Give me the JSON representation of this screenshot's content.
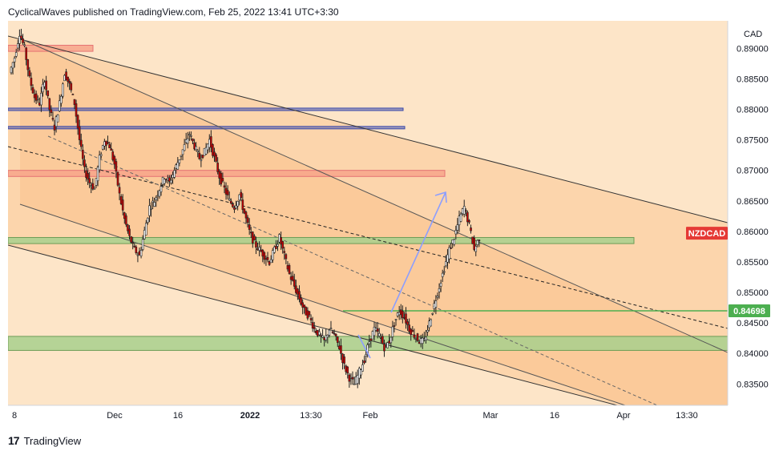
{
  "header": {
    "text": "CyclicalWaves published on TradingView.com, Feb 25, 2022 13:41 UTC+3:30"
  },
  "footer": {
    "logo": "17",
    "brand": "TradingView"
  },
  "chart_data": {
    "type": "candlestick",
    "symbol": "NZDCAD",
    "currency": "CAD",
    "y_axis_labels": [
      "0.89000",
      "0.88500",
      "0.88000",
      "0.87500",
      "0.87000",
      "0.86500",
      "0.86000",
      "0.85500",
      "0.85000",
      "0.84500",
      "0.84000",
      "0.83500"
    ],
    "ylim": [
      0.8315,
      0.8945
    ],
    "x_axis_labels": [
      "8",
      "Dec",
      "16",
      "2022",
      "13:30",
      "Feb",
      "Mar",
      "16",
      "Apr",
      "13:30"
    ],
    "price_label": "0.84698",
    "current_price": 0.84698,
    "symbol_tag_price": 0.8597,
    "colors": {
      "background": "#fde5c8",
      "channel_fill": "#fbc995",
      "candle": "#cc0000",
      "wick": "#222222",
      "support_line": "#4caf50",
      "green_zone": "#a8d08d",
      "red_zone": "#f7a58a",
      "blue_line": "#3949ab",
      "arrow": "#8c9eff"
    },
    "price_path": [
      0.886,
      0.8885,
      0.8925,
      0.89,
      0.885,
      0.882,
      0.881,
      0.885,
      0.88,
      0.877,
      0.881,
      0.886,
      0.884,
      0.881,
      0.875,
      0.87,
      0.868,
      0.867,
      0.872,
      0.875,
      0.874,
      0.871,
      0.866,
      0.862,
      0.859,
      0.857,
      0.856,
      0.86,
      0.864,
      0.865,
      0.867,
      0.869,
      0.868,
      0.87,
      0.872,
      0.874,
      0.876,
      0.874,
      0.872,
      0.873,
      0.875,
      0.872,
      0.869,
      0.867,
      0.865,
      0.864,
      0.866,
      0.863,
      0.86,
      0.858,
      0.857,
      0.856,
      0.855,
      0.857,
      0.859,
      0.856,
      0.853,
      0.851,
      0.849,
      0.847,
      0.846,
      0.844,
      0.843,
      0.842,
      0.844,
      0.843,
      0.841,
      0.838,
      0.836,
      0.835,
      0.837,
      0.839,
      0.842,
      0.844,
      0.843,
      0.841,
      0.842,
      0.845,
      0.847,
      0.846,
      0.844,
      0.843,
      0.842,
      0.842,
      0.845,
      0.848,
      0.851,
      0.854,
      0.857,
      0.859,
      0.862,
      0.864,
      0.861,
      0.857,
      0.859
    ],
    "zones": [
      {
        "name": "red-zone-top",
        "y1": 0.8905,
        "y2": 0.8895,
        "x_end": 116,
        "color": "red"
      },
      {
        "name": "blue-line-upper",
        "y1": 0.8802,
        "y2": 0.8798,
        "x_end": 503,
        "color": "blue"
      },
      {
        "name": "blue-line-lower",
        "y1": 0.8772,
        "y2": 0.8768,
        "x_end": 505,
        "color": "blue"
      },
      {
        "name": "red-zone-mid",
        "y1": 0.87,
        "y2": 0.869,
        "x_end": 555,
        "color": "red"
      },
      {
        "name": "green-zone-upper",
        "y1": 0.859,
        "y2": 0.858,
        "x_end": 791,
        "color": "green"
      },
      {
        "name": "green-zone-lower",
        "y1": 0.8428,
        "y2": 0.8405,
        "x_end": 908,
        "color": "green"
      }
    ]
  }
}
